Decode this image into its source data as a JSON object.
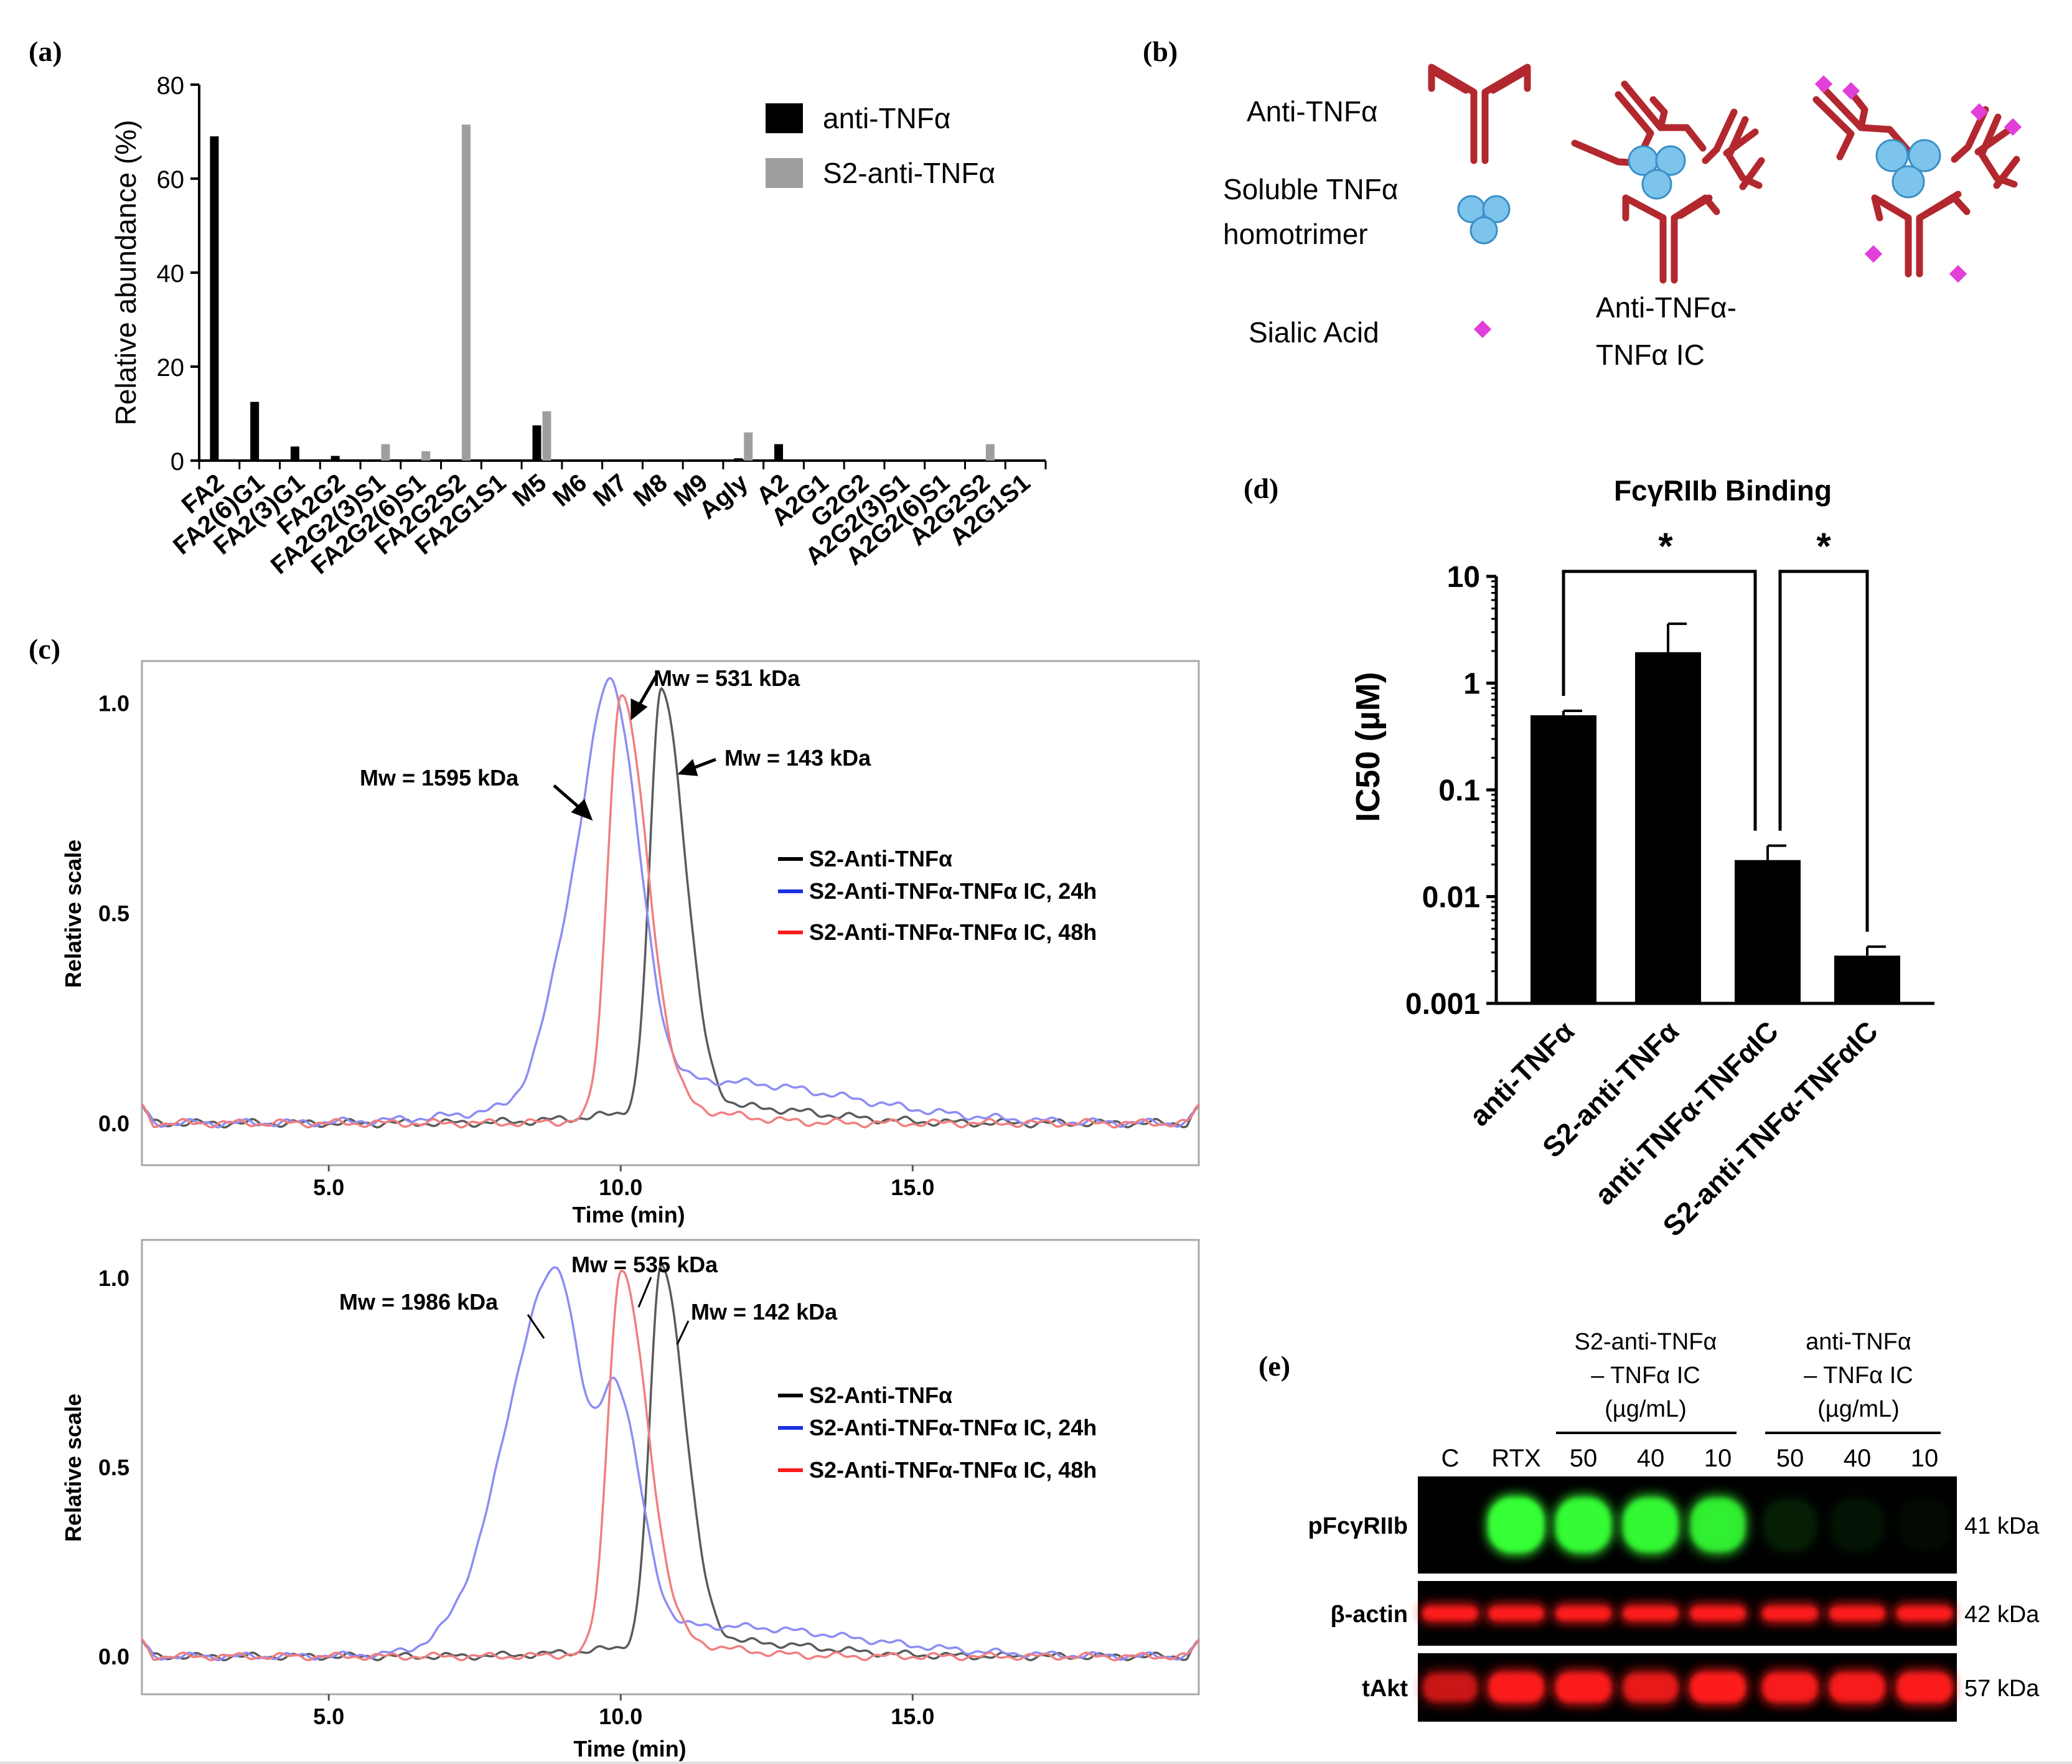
{
  "panels": {
    "a": {
      "label": "(a)"
    },
    "b": {
      "label": "(b)"
    },
    "c": {
      "label": "(c)"
    },
    "d": {
      "label": "(d)"
    },
    "e": {
      "label": "(e)"
    }
  },
  "colors": {
    "black": "#000000",
    "gray": "#9e9e9e",
    "antibody": "#b2282e",
    "tnf_fill": "#7cc4ec",
    "tnf_stroke": "#3b8fc7",
    "sialic": "#e23fd8",
    "trace_black": "#5a5a5a",
    "trace_blue": "#8c8cf5",
    "trace_red": "#f07f7f",
    "legend_blue": "#1b2fe0",
    "legend_red": "#ff1a1a",
    "blot_green": "#36ff36",
    "blot_red": "#ff1a1a"
  },
  "chart_data": [
    {
      "id": "a",
      "type": "bar",
      "title": "",
      "ylabel": "Relative abundance (%)",
      "xlabel": "",
      "ylim": [
        0,
        80
      ],
      "yticks": [
        "0",
        "20",
        "40",
        "60",
        "80"
      ],
      "categories": [
        "FA2",
        "FA2(6)G1",
        "FA2(3)G1",
        "FA2G2",
        "FA2G2(3)S1",
        "FA2G2(6)S1",
        "FA2G2S2",
        "FA2G1S1",
        "M5",
        "M6",
        "M7",
        "M8",
        "M9",
        "Agly",
        "A2",
        "A2G1",
        "G2G2",
        "A2G2(3)S1",
        "A2G2(6)S1",
        "A2G2S2",
        "A2G1S1"
      ],
      "series": [
        {
          "name": "anti-TNFα",
          "color": "#000000",
          "values": [
            69,
            12.5,
            3,
            1,
            0,
            0,
            0,
            0,
            7.5,
            0,
            0,
            0,
            0,
            0.5,
            3.5,
            0,
            0,
            0,
            0,
            0,
            0
          ]
        },
        {
          "name": "S2-anti-TNFα",
          "color": "#9e9e9e",
          "values": [
            0,
            0,
            0,
            0,
            3.5,
            2,
            71.5,
            0,
            10.5,
            0,
            0,
            0,
            0,
            6,
            0,
            0,
            0,
            0,
            0,
            3.5,
            0
          ]
        }
      ]
    },
    {
      "id": "c-top",
      "type": "line",
      "xlabel": "Time (min)",
      "ylabel": "Relative scale",
      "xlim": [
        1.8,
        19.9
      ],
      "ylim": [
        -0.1,
        1.1
      ],
      "xticks": [
        "5.0",
        "10.0",
        "15.0"
      ],
      "yticks": [
        "0.0",
        "0.5",
        "1.0"
      ],
      "series": [
        {
          "name": "S2-Anti-TNFα",
          "color": "#5a5a5a",
          "peaks": [
            {
              "center": 10.7,
              "height": 1.0,
              "sigma_left": 0.2,
              "sigma_right": 0.4
            }
          ],
          "tail": {
            "center": 11.7,
            "height": 0.04,
            "sigma": 1.6
          }
        },
        {
          "name": "S2-Anti-TNFα-TNFα IC, 24h",
          "color": "#8c8cf5",
          "peaks": [
            {
              "center": 9.9,
              "height": 0.82,
              "sigma_left": 0.4,
              "sigma_right": 0.45
            },
            {
              "center": 9.2,
              "height": 0.38,
              "sigma_left": 0.45,
              "sigma_right": 0.5
            }
          ],
          "tail": {
            "center": 11.5,
            "height": 0.1,
            "sigma": 2.4
          }
        },
        {
          "name": "S2-Anti-TNFα-TNFα IC, 48h",
          "color": "#f07f7f",
          "peaks": [
            {
              "center": 10.0,
              "height": 1.0,
              "sigma_left": 0.22,
              "sigma_right": 0.45
            }
          ],
          "tail": {
            "center": 11.0,
            "height": 0.03,
            "sigma": 1.0
          }
        }
      ],
      "annotations": [
        "Mw = 531 kDa",
        "Mw = 1595 kDa",
        "Mw = 143 kDa"
      ]
    },
    {
      "id": "c-bottom",
      "type": "line",
      "xlabel": "Time (min)",
      "ylabel": "Relative scale",
      "xlim": [
        1.8,
        19.9
      ],
      "ylim": [
        -0.1,
        1.1
      ],
      "xticks": [
        "5.0",
        "10.0",
        "15.0"
      ],
      "yticks": [
        "0.0",
        "0.5",
        "1.0"
      ],
      "series": [
        {
          "name": "S2-Anti-TNFα",
          "color": "#5a5a5a",
          "peaks": [
            {
              "center": 10.7,
              "height": 1.0,
              "sigma_left": 0.2,
              "sigma_right": 0.4
            }
          ],
          "tail": {
            "center": 11.7,
            "height": 0.04,
            "sigma": 1.6
          }
        },
        {
          "name": "S2-Anti-TNFα-TNFα IC, 24h",
          "color": "#8c8cf5",
          "peaks": [
            {
              "center": 8.9,
              "height": 0.98,
              "sigma_left": 0.85,
              "sigma_right": 0.45
            },
            {
              "center": 9.95,
              "height": 0.6,
              "sigma_left": 0.3,
              "sigma_right": 0.4
            }
          ],
          "tail": {
            "center": 11.6,
            "height": 0.08,
            "sigma": 2.4
          }
        },
        {
          "name": "S2-Anti-TNFα-TNFα IC, 48h",
          "color": "#f07f7f",
          "peaks": [
            {
              "center": 10.0,
              "height": 1.0,
              "sigma_left": 0.22,
              "sigma_right": 0.45
            }
          ],
          "tail": {
            "center": 11.0,
            "height": 0.03,
            "sigma": 1.0
          }
        }
      ],
      "annotations": [
        "Mw = 535 kDa",
        "Mw = 1986 kDa",
        "Mw = 142 kDa"
      ]
    },
    {
      "id": "d",
      "type": "bar",
      "title": "FcγRIIb Binding",
      "ylabel": "IC50 (µM)",
      "yscale": "log",
      "ylim": [
        0.001,
        10
      ],
      "yticks": [
        "10",
        "1",
        "0.1",
        "0.01",
        "0.001"
      ],
      "categories": [
        "anti-TNFα",
        "S2-anti-TNFα",
        "anti-TNFα-TNFαIC",
        "S2-anti-TNFα-TNFαIC"
      ],
      "values": [
        0.5,
        1.95,
        0.022,
        0.0028
      ],
      "errors": [
        0.55,
        3.6,
        0.03,
        0.0034
      ],
      "significance": [
        {
          "from": 0,
          "to": 2,
          "label": "*"
        },
        {
          "from": 2,
          "to": 3,
          "label": "*"
        }
      ]
    }
  ],
  "panel_b": {
    "anti_label": "Anti-TNFα",
    "soluble_line1": "Soluble TNFα",
    "soluble_line2": "homotrimer",
    "sialic_label": "Sialic Acid",
    "ic_line1": "Anti-TNFα-",
    "ic_line2": "TNFα IC"
  },
  "panel_e": {
    "group1_line1": "S2-anti-TNFα",
    "group1_line2": "– TNFα IC",
    "group1_line3": "(µg/mL)",
    "group2_line1": "anti-TNFα",
    "group2_line2": "– TNFα IC",
    "group2_line3": "(µg/mL)",
    "lanes": [
      "C",
      "RTX",
      "50",
      "40",
      "10",
      "50",
      "40",
      "10"
    ],
    "rows": [
      {
        "label": "pFcγRIIb",
        "size": "41 kDa",
        "intensity": [
          0,
          1.0,
          0.9,
          0.85,
          0.75,
          0.06,
          0.04,
          0.02
        ]
      },
      {
        "label": "β-actin",
        "size": "42 kDa",
        "intensity": [
          0.95,
          0.95,
          0.95,
          0.95,
          0.95,
          0.95,
          0.95,
          0.95
        ]
      },
      {
        "label": "tAkt",
        "size": "57 kDa",
        "intensity": [
          0.55,
          0.9,
          0.9,
          0.7,
          0.95,
          0.85,
          0.85,
          0.9
        ]
      }
    ]
  }
}
